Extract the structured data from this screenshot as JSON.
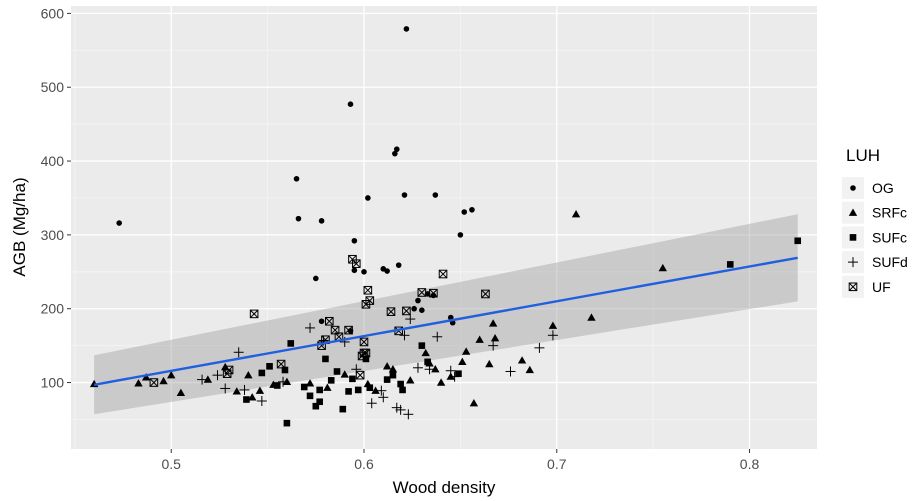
{
  "chart_data": {
    "type": "scatter",
    "xlabel": "Wood density",
    "ylabel": "AGB (Mg/ha)",
    "xlim": [
      0.448,
      0.835
    ],
    "ylim": [
      10,
      610
    ],
    "x_ticks": [
      0.5,
      0.6,
      0.7,
      0.8
    ],
    "y_ticks": [
      100,
      200,
      300,
      400,
      500,
      600
    ],
    "x_tick_labels": [
      "0.5",
      "0.6",
      "0.7",
      "0.8"
    ],
    "y_tick_labels": [
      "100",
      "200",
      "300",
      "400",
      "500",
      "600"
    ],
    "grid": true,
    "legend": {
      "title": "LUH",
      "placement": "right",
      "entries": [
        {
          "label": "OG",
          "shape": "circle"
        },
        {
          "label": "SRFc",
          "shape": "triangle"
        },
        {
          "label": "SUFc",
          "shape": "square"
        },
        {
          "label": "SUFd",
          "shape": "plus"
        },
        {
          "label": "UF",
          "shape": "boxx"
        }
      ]
    },
    "series": [
      {
        "name": "OG",
        "shape": "circle",
        "points": [
          [
            0.473,
            316
          ],
          [
            0.565,
            376
          ],
          [
            0.566,
            322
          ],
          [
            0.575,
            241
          ],
          [
            0.578,
            319
          ],
          [
            0.593,
            477
          ],
          [
            0.595,
            292
          ],
          [
            0.595,
            252
          ],
          [
            0.6,
            250
          ],
          [
            0.602,
            350
          ],
          [
            0.61,
            254
          ],
          [
            0.612,
            251
          ],
          [
            0.616,
            410
          ],
          [
            0.617,
            416
          ],
          [
            0.618,
            259
          ],
          [
            0.621,
            354
          ],
          [
            0.622,
            579
          ],
          [
            0.626,
            200
          ],
          [
            0.628,
            211
          ],
          [
            0.63,
            198
          ],
          [
            0.633,
            220
          ],
          [
            0.636,
            218
          ],
          [
            0.637,
            354
          ],
          [
            0.645,
            188
          ],
          [
            0.646,
            181
          ],
          [
            0.65,
            300
          ],
          [
            0.652,
            331
          ],
          [
            0.656,
            334
          ],
          [
            0.578,
            183
          ],
          [
            0.593,
            170
          ]
        ]
      },
      {
        "name": "SRFc",
        "shape": "triangle",
        "points": [
          [
            0.46,
            98
          ],
          [
            0.483,
            99
          ],
          [
            0.487,
            107
          ],
          [
            0.5,
            110
          ],
          [
            0.505,
            86
          ],
          [
            0.519,
            104
          ],
          [
            0.528,
            121
          ],
          [
            0.534,
            88
          ],
          [
            0.54,
            110
          ],
          [
            0.542,
            80
          ],
          [
            0.546,
            89
          ],
          [
            0.553,
            97
          ],
          [
            0.56,
            101
          ],
          [
            0.572,
            99
          ],
          [
            0.581,
            93
          ],
          [
            0.59,
            111
          ],
          [
            0.602,
            98
          ],
          [
            0.606,
            89
          ],
          [
            0.612,
            122
          ],
          [
            0.615,
            118
          ],
          [
            0.624,
            103
          ],
          [
            0.632,
            140
          ],
          [
            0.634,
            126
          ],
          [
            0.637,
            118
          ],
          [
            0.64,
            100
          ],
          [
            0.645,
            108
          ],
          [
            0.651,
            128
          ],
          [
            0.653,
            142
          ],
          [
            0.657,
            72
          ],
          [
            0.66,
            158
          ],
          [
            0.665,
            125
          ],
          [
            0.668,
            160
          ],
          [
            0.667,
            180
          ],
          [
            0.682,
            130
          ],
          [
            0.686,
            117
          ],
          [
            0.698,
            177
          ],
          [
            0.71,
            328
          ],
          [
            0.718,
            188
          ],
          [
            0.755,
            255
          ],
          [
            0.496,
            102
          ]
        ]
      },
      {
        "name": "SUFc",
        "shape": "square",
        "points": [
          [
            0.539,
            77
          ],
          [
            0.547,
            113
          ],
          [
            0.551,
            122
          ],
          [
            0.555,
            96
          ],
          [
            0.559,
            117
          ],
          [
            0.56,
            45
          ],
          [
            0.562,
            153
          ],
          [
            0.569,
            94
          ],
          [
            0.572,
            82
          ],
          [
            0.575,
            68
          ],
          [
            0.577,
            74
          ],
          [
            0.577,
            90
          ],
          [
            0.58,
            132
          ],
          [
            0.583,
            103
          ],
          [
            0.586,
            115
          ],
          [
            0.589,
            64
          ],
          [
            0.592,
            88
          ],
          [
            0.594,
            105
          ],
          [
            0.597,
            90
          ],
          [
            0.601,
            132
          ],
          [
            0.603,
            93
          ],
          [
            0.612,
            104
          ],
          [
            0.615,
            110
          ],
          [
            0.619,
            98
          ],
          [
            0.62,
            90
          ],
          [
            0.63,
            150
          ],
          [
            0.633,
            128
          ],
          [
            0.649,
            112
          ],
          [
            0.79,
            260
          ],
          [
            0.825,
            292
          ]
        ]
      },
      {
        "name": "SUFd",
        "shape": "plus",
        "points": [
          [
            0.516,
            104
          ],
          [
            0.524,
            110
          ],
          [
            0.528,
            92
          ],
          [
            0.535,
            141
          ],
          [
            0.547,
            75
          ],
          [
            0.558,
            101
          ],
          [
            0.572,
            174
          ],
          [
            0.579,
            157
          ],
          [
            0.59,
            155
          ],
          [
            0.596,
            118
          ],
          [
            0.604,
            72
          ],
          [
            0.609,
            89
          ],
          [
            0.61,
            80
          ],
          [
            0.617,
            66
          ],
          [
            0.619,
            63
          ],
          [
            0.621,
            164
          ],
          [
            0.623,
            57
          ],
          [
            0.624,
            186
          ],
          [
            0.628,
            120
          ],
          [
            0.634,
            118
          ],
          [
            0.638,
            162
          ],
          [
            0.645,
            116
          ],
          [
            0.647,
            108
          ],
          [
            0.667,
            150
          ],
          [
            0.676,
            115
          ],
          [
            0.691,
            147
          ],
          [
            0.698,
            164
          ],
          [
            0.538,
            90
          ]
        ]
      },
      {
        "name": "UF",
        "shape": "boxx",
        "points": [
          [
            0.491,
            100
          ],
          [
            0.53,
            117
          ],
          [
            0.529,
            112
          ],
          [
            0.543,
            193
          ],
          [
            0.557,
            125
          ],
          [
            0.578,
            150
          ],
          [
            0.58,
            158
          ],
          [
            0.582,
            183
          ],
          [
            0.585,
            171
          ],
          [
            0.587,
            162
          ],
          [
            0.592,
            171
          ],
          [
            0.594,
            267
          ],
          [
            0.596,
            261
          ],
          [
            0.598,
            110
          ],
          [
            0.6,
            155
          ],
          [
            0.6,
            140
          ],
          [
            0.601,
            206
          ],
          [
            0.602,
            225
          ],
          [
            0.603,
            211
          ],
          [
            0.614,
            196
          ],
          [
            0.618,
            170
          ],
          [
            0.622,
            197
          ],
          [
            0.63,
            222
          ],
          [
            0.636,
            221
          ],
          [
            0.641,
            247
          ],
          [
            0.663,
            220
          ],
          [
            0.599,
            136
          ],
          [
            0.601,
            140
          ]
        ]
      }
    ],
    "trend": {
      "type": "linear",
      "color": "#1f5fe0",
      "x": [
        0.46,
        0.825
      ],
      "y": [
        97,
        269
      ],
      "ci_lower": [
        57,
        210
      ],
      "ci_upper": [
        137,
        328
      ]
    },
    "colors": {
      "panel_background": "#ebebeb",
      "grid_major": "#ffffff",
      "grid_minor": "#f5f5f5",
      "points": "#000000",
      "ribbon": "#999999"
    }
  }
}
